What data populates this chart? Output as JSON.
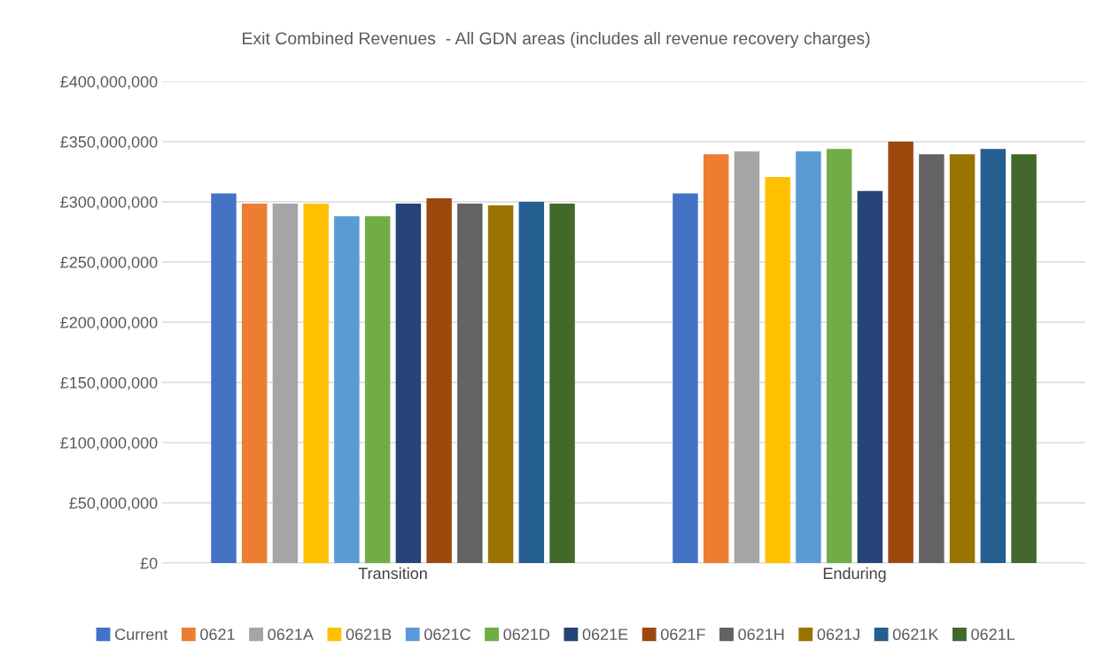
{
  "chart_data": {
    "type": "bar",
    "title": "Exit Combined Revenues  - All GDN areas (includes all revenue recovery charges)",
    "categories": [
      "Transition",
      "Enduring"
    ],
    "series": [
      {
        "name": "Current",
        "color": "#4472c4",
        "values": [
          307000000,
          307000000
        ]
      },
      {
        "name": "0621",
        "color": "#ed7d31",
        "values": [
          298500000,
          339500000
        ]
      },
      {
        "name": "0621A",
        "color": "#a5a5a5",
        "values": [
          298500000,
          342000000
        ]
      },
      {
        "name": "0621B",
        "color": "#ffc000",
        "values": [
          298500000,
          320500000
        ]
      },
      {
        "name": "0621C",
        "color": "#5b9bd5",
        "values": [
          288000000,
          342000000
        ]
      },
      {
        "name": "0621D",
        "color": "#70ad47",
        "values": [
          288000000,
          344000000
        ]
      },
      {
        "name": "0621E",
        "color": "#264478",
        "values": [
          298500000,
          309000000
        ]
      },
      {
        "name": "0621F",
        "color": "#9e480e",
        "values": [
          303000000,
          350000000
        ]
      },
      {
        "name": "0621H",
        "color": "#636363",
        "values": [
          298500000,
          339500000
        ]
      },
      {
        "name": "0621J",
        "color": "#997300",
        "values": [
          297000000,
          339500000
        ]
      },
      {
        "name": "0621K",
        "color": "#255e91",
        "values": [
          300000000,
          344000000
        ]
      },
      {
        "name": "0621L",
        "color": "#43682b",
        "values": [
          298500000,
          339500000
        ]
      }
    ],
    "ylim": [
      0,
      400000000
    ],
    "yticks": [
      {
        "value": 0,
        "label": "£0"
      },
      {
        "value": 50000000,
        "label": "£50,000,000"
      },
      {
        "value": 100000000,
        "label": "£100,000,000"
      },
      {
        "value": 150000000,
        "label": "£150,000,000"
      },
      {
        "value": 200000000,
        "label": "£200,000,000"
      },
      {
        "value": 250000000,
        "label": "£250,000,000"
      },
      {
        "value": 300000000,
        "label": "£300,000,000"
      },
      {
        "value": 350000000,
        "label": "£350,000,000"
      },
      {
        "value": 400000000,
        "label": "£400,000,000"
      }
    ],
    "grid": "y",
    "legend": "bottom"
  }
}
